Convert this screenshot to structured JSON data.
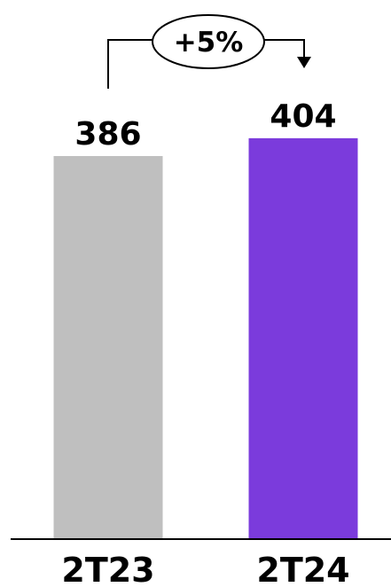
{
  "colors": {
    "bar_previous": "#bfbfbf",
    "bar_current": "#7b3bdc",
    "axis": "#000000",
    "text": "#000000"
  },
  "chart_data": {
    "type": "bar",
    "categories": [
      "2T23",
      "2T24"
    ],
    "values": [
      386,
      404
    ],
    "data_labels": [
      "386",
      "404"
    ],
    "title": "",
    "xlabel": "",
    "ylabel": "",
    "ylim": [
      0,
      420
    ],
    "grid": false,
    "annotations": [
      {
        "text": "+5%",
        "from_category": "2T23",
        "to_category": "2T24",
        "shape": "ellipse-callout-arrow"
      }
    ]
  }
}
